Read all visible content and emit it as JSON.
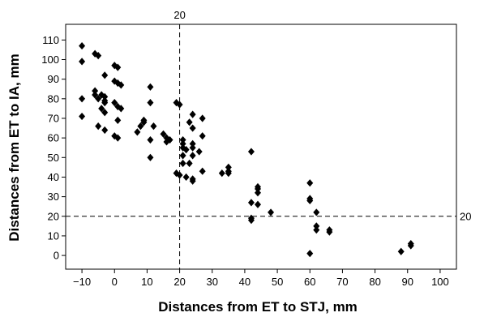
{
  "chart_data": {
    "type": "scatter",
    "title": "",
    "xlabel": "Distances from ET to STJ, mm",
    "ylabel": "Distances from ET to IA, mm",
    "xlim": [
      -15,
      105
    ],
    "ylim": [
      -7,
      118
    ],
    "x_ticks": [
      -10,
      0,
      10,
      20,
      30,
      40,
      50,
      60,
      70,
      80,
      90,
      100
    ],
    "y_ticks": [
      0,
      10,
      20,
      30,
      40,
      50,
      60,
      70,
      80,
      90,
      100,
      110
    ],
    "x_tick_labels": [
      "−10",
      "0",
      "10",
      "20",
      "30",
      "40",
      "50",
      "60",
      "70",
      "80",
      "90",
      "100"
    ],
    "y_tick_labels": [
      "0",
      "10",
      "20",
      "30",
      "40",
      "50",
      "60",
      "70",
      "80",
      "90",
      "100",
      "110"
    ],
    "grid": false,
    "marker": "diamond",
    "marker_color": "#000000",
    "reference_lines": [
      {
        "orientation": "vertical",
        "value": 20,
        "label": "20",
        "style": "dashed"
      },
      {
        "orientation": "horizontal",
        "value": 20,
        "label": "20",
        "style": "dashed"
      }
    ],
    "points": [
      {
        "x": -10,
        "y": 107
      },
      {
        "x": -10,
        "y": 99
      },
      {
        "x": -10,
        "y": 80
      },
      {
        "x": -10,
        "y": 71
      },
      {
        "x": -6,
        "y": 103
      },
      {
        "x": -5,
        "y": 102
      },
      {
        "x": -6,
        "y": 84
      },
      {
        "x": -6,
        "y": 82
      },
      {
        "x": -5,
        "y": 80
      },
      {
        "x": -4,
        "y": 82
      },
      {
        "x": -3,
        "y": 81
      },
      {
        "x": -3,
        "y": 79
      },
      {
        "x": -3,
        "y": 78
      },
      {
        "x": -4,
        "y": 75
      },
      {
        "x": -3,
        "y": 73
      },
      {
        "x": -5,
        "y": 66
      },
      {
        "x": -3,
        "y": 64
      },
      {
        "x": -3,
        "y": 92
      },
      {
        "x": 0,
        "y": 97
      },
      {
        "x": 1,
        "y": 96
      },
      {
        "x": 0,
        "y": 89
      },
      {
        "x": 1,
        "y": 88
      },
      {
        "x": 2,
        "y": 87
      },
      {
        "x": 0,
        "y": 78
      },
      {
        "x": 1,
        "y": 76
      },
      {
        "x": 2,
        "y": 75
      },
      {
        "x": 1,
        "y": 69
      },
      {
        "x": 0,
        "y": 61
      },
      {
        "x": 1,
        "y": 60
      },
      {
        "x": 7,
        "y": 63
      },
      {
        "x": 8,
        "y": 66
      },
      {
        "x": 9,
        "y": 68
      },
      {
        "x": 9,
        "y": 69
      },
      {
        "x": 11,
        "y": 86
      },
      {
        "x": 11,
        "y": 78
      },
      {
        "x": 12,
        "y": 66
      },
      {
        "x": 11,
        "y": 59
      },
      {
        "x": 11,
        "y": 50
      },
      {
        "x": 15,
        "y": 62
      },
      {
        "x": 16,
        "y": 60
      },
      {
        "x": 17,
        "y": 59
      },
      {
        "x": 16,
        "y": 58
      },
      {
        "x": 19,
        "y": 78
      },
      {
        "x": 20,
        "y": 77
      },
      {
        "x": 19,
        "y": 42
      },
      {
        "x": 20,
        "y": 41
      },
      {
        "x": 21,
        "y": 59
      },
      {
        "x": 21,
        "y": 57
      },
      {
        "x": 21,
        "y": 55
      },
      {
        "x": 22,
        "y": 54
      },
      {
        "x": 21,
        "y": 51
      },
      {
        "x": 21,
        "y": 47
      },
      {
        "x": 22,
        "y": 40
      },
      {
        "x": 24,
        "y": 72
      },
      {
        "x": 23,
        "y": 68
      },
      {
        "x": 24,
        "y": 65
      },
      {
        "x": 24,
        "y": 57
      },
      {
        "x": 24,
        "y": 55
      },
      {
        "x": 24,
        "y": 51
      },
      {
        "x": 23,
        "y": 47
      },
      {
        "x": 24,
        "y": 39
      },
      {
        "x": 24,
        "y": 38
      },
      {
        "x": 27,
        "y": 70
      },
      {
        "x": 27,
        "y": 61
      },
      {
        "x": 26,
        "y": 53
      },
      {
        "x": 27,
        "y": 43
      },
      {
        "x": 33,
        "y": 42
      },
      {
        "x": 35,
        "y": 45
      },
      {
        "x": 35,
        "y": 43
      },
      {
        "x": 35,
        "y": 42
      },
      {
        "x": 42,
        "y": 53
      },
      {
        "x": 42,
        "y": 27
      },
      {
        "x": 42,
        "y": 19
      },
      {
        "x": 42,
        "y": 18
      },
      {
        "x": 44,
        "y": 35
      },
      {
        "x": 44,
        "y": 34
      },
      {
        "x": 44,
        "y": 32
      },
      {
        "x": 44,
        "y": 26
      },
      {
        "x": 48,
        "y": 22
      },
      {
        "x": 60,
        "y": 37
      },
      {
        "x": 60,
        "y": 29
      },
      {
        "x": 60,
        "y": 28
      },
      {
        "x": 60,
        "y": 1
      },
      {
        "x": 62,
        "y": 22
      },
      {
        "x": 62,
        "y": 15
      },
      {
        "x": 62,
        "y": 13
      },
      {
        "x": 66,
        "y": 13
      },
      {
        "x": 66,
        "y": 12
      },
      {
        "x": 88,
        "y": 2
      },
      {
        "x": 91,
        "y": 6
      },
      {
        "x": 91,
        "y": 5
      }
    ]
  }
}
